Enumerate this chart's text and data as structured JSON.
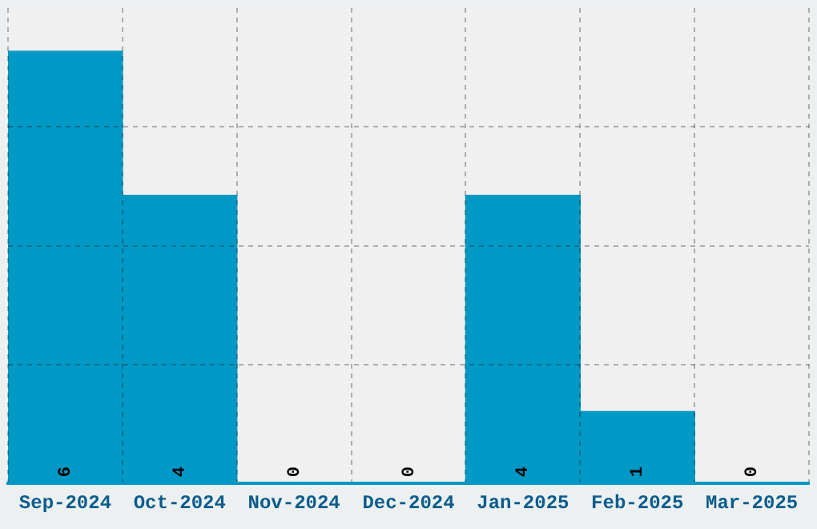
{
  "chart_data": {
    "type": "bar",
    "categories": [
      "Sep-2024",
      "Oct-2024",
      "Nov-2024",
      "Dec-2024",
      "Jan-2025",
      "Feb-2025",
      "Mar-2025"
    ],
    "values": [
      6,
      4,
      0,
      0,
      4,
      1,
      0
    ],
    "color": "#0099c6",
    "ylim": [
      0,
      6.6
    ],
    "yticks": [
      {
        "value": 1.65,
        "label": null
      },
      {
        "value": 3.3,
        "label": null
      },
      {
        "value": 4.95,
        "label": null
      }
    ],
    "grid": true,
    "data_labels": true
  }
}
